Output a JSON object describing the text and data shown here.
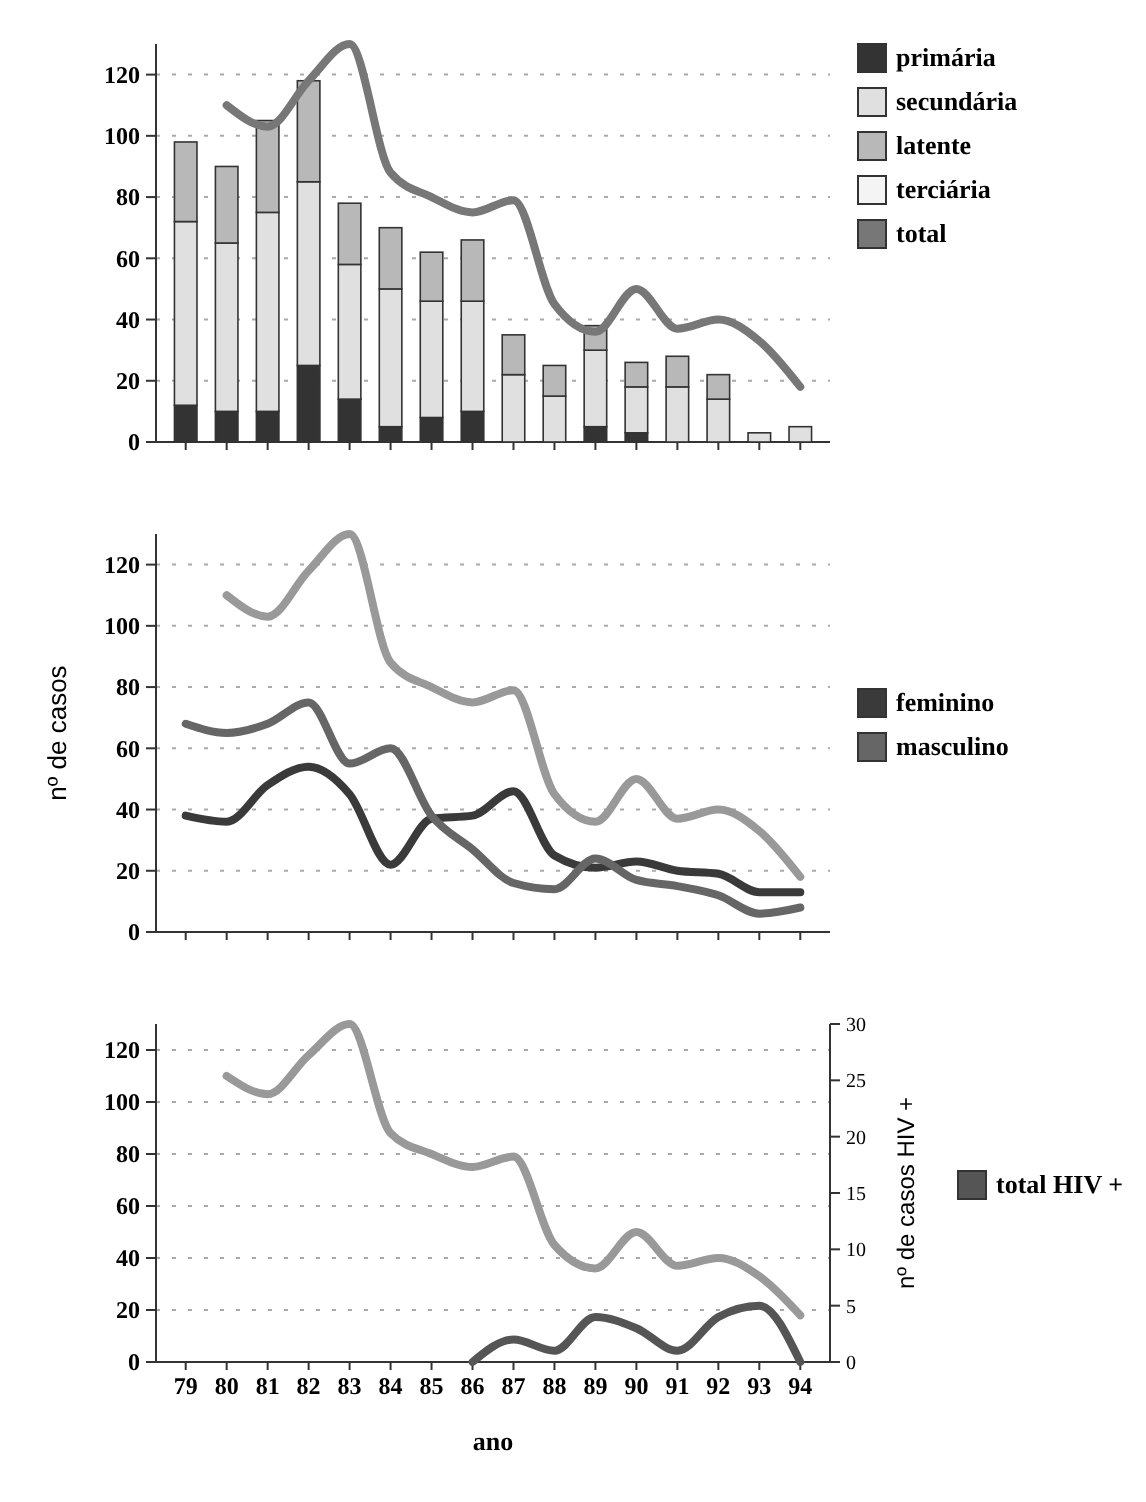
{
  "chart_data": [
    {
      "type": "bar",
      "stacked": true,
      "categories": [
        "79",
        "80",
        "81",
        "82",
        "83",
        "84",
        "85",
        "86",
        "87",
        "88",
        "89",
        "90",
        "91",
        "92",
        "93",
        "94"
      ],
      "ylim": [
        0,
        130
      ],
      "yticks": [
        0,
        20,
        40,
        60,
        80,
        100,
        120
      ],
      "grid": "y",
      "legend": "top right",
      "tick_labels": "y",
      "series": [
        {
          "name": "primária",
          "color": "#333333",
          "values": [
            12,
            10,
            10,
            25,
            14,
            5,
            8,
            10,
            0,
            0,
            5,
            3,
            0,
            0,
            0,
            0
          ]
        },
        {
          "name": "secundária",
          "color": "#e0e0e0",
          "values": [
            60,
            55,
            65,
            60,
            44,
            45,
            38,
            36,
            22,
            15,
            25,
            15,
            18,
            14,
            3,
            5
          ]
        },
        {
          "name": "latente",
          "color": "#b8b8b8",
          "values": [
            26,
            25,
            30,
            33,
            20,
            20,
            16,
            20,
            13,
            10,
            8,
            8,
            10,
            8,
            0,
            0
          ]
        },
        {
          "name": "terciária",
          "color": "#f4f4f4",
          "values": [
            null,
            null,
            null,
            null,
            null,
            null,
            null,
            null,
            null,
            null,
            null,
            null,
            null,
            null,
            null,
            null
          ]
        },
        {
          "name": "total",
          "type": "line",
          "color": "#777777",
          "values": [
            null,
            110,
            103,
            118,
            130,
            88,
            80,
            75,
            79,
            45,
            36,
            50,
            37,
            40,
            33,
            18
          ]
        }
      ]
    },
    {
      "type": "line",
      "categories": [
        "79",
        "80",
        "81",
        "82",
        "83",
        "84",
        "85",
        "86",
        "87",
        "88",
        "89",
        "90",
        "91",
        "92",
        "93",
        "94"
      ],
      "ylim": [
        0,
        130
      ],
      "yticks": [
        0,
        20,
        40,
        60,
        80,
        100,
        120
      ],
      "ylabel": "nº de casos",
      "grid": "y",
      "legend": "right",
      "tick_labels": "y",
      "series": [
        {
          "color": "#999999",
          "values": [
            null,
            110,
            103,
            118,
            130,
            88,
            80,
            75,
            79,
            45,
            36,
            50,
            37,
            40,
            33,
            18
          ]
        },
        {
          "name": "feminino",
          "color": "#3a3a3a",
          "values": [
            38,
            36,
            48,
            54,
            45,
            22,
            37,
            38,
            46,
            25,
            21,
            23,
            20,
            19,
            13,
            13
          ]
        },
        {
          "name": "masculino",
          "color": "#666666",
          "values": [
            68,
            65,
            68,
            75,
            55,
            60,
            38,
            27,
            16,
            14,
            24,
            17,
            15,
            12,
            6,
            8
          ]
        }
      ]
    },
    {
      "type": "line",
      "categories": [
        "79",
        "80",
        "81",
        "82",
        "83",
        "84",
        "85",
        "86",
        "87",
        "88",
        "89",
        "90",
        "91",
        "92",
        "93",
        "94"
      ],
      "ylim": [
        0,
        130
      ],
      "yticks": [
        0,
        20,
        40,
        60,
        80,
        100,
        120
      ],
      "y2lim": [
        0,
        30
      ],
      "y2ticks": [
        0,
        5,
        10,
        15,
        20,
        25,
        30
      ],
      "xlabel": "ano",
      "y2label": "nº de casos HIV +",
      "grid": "y",
      "legend": "right",
      "series": [
        {
          "color": "#999999",
          "values": [
            null,
            110,
            103,
            118,
            130,
            88,
            80,
            75,
            79,
            45,
            36,
            50,
            37,
            40,
            33,
            18
          ]
        },
        {
          "name": "total HIV +",
          "axis": "y2",
          "color": "#555555",
          "values": [
            null,
            null,
            null,
            null,
            null,
            null,
            null,
            0,
            2,
            1,
            4,
            3,
            1,
            4,
            5,
            0
          ]
        }
      ]
    }
  ]
}
